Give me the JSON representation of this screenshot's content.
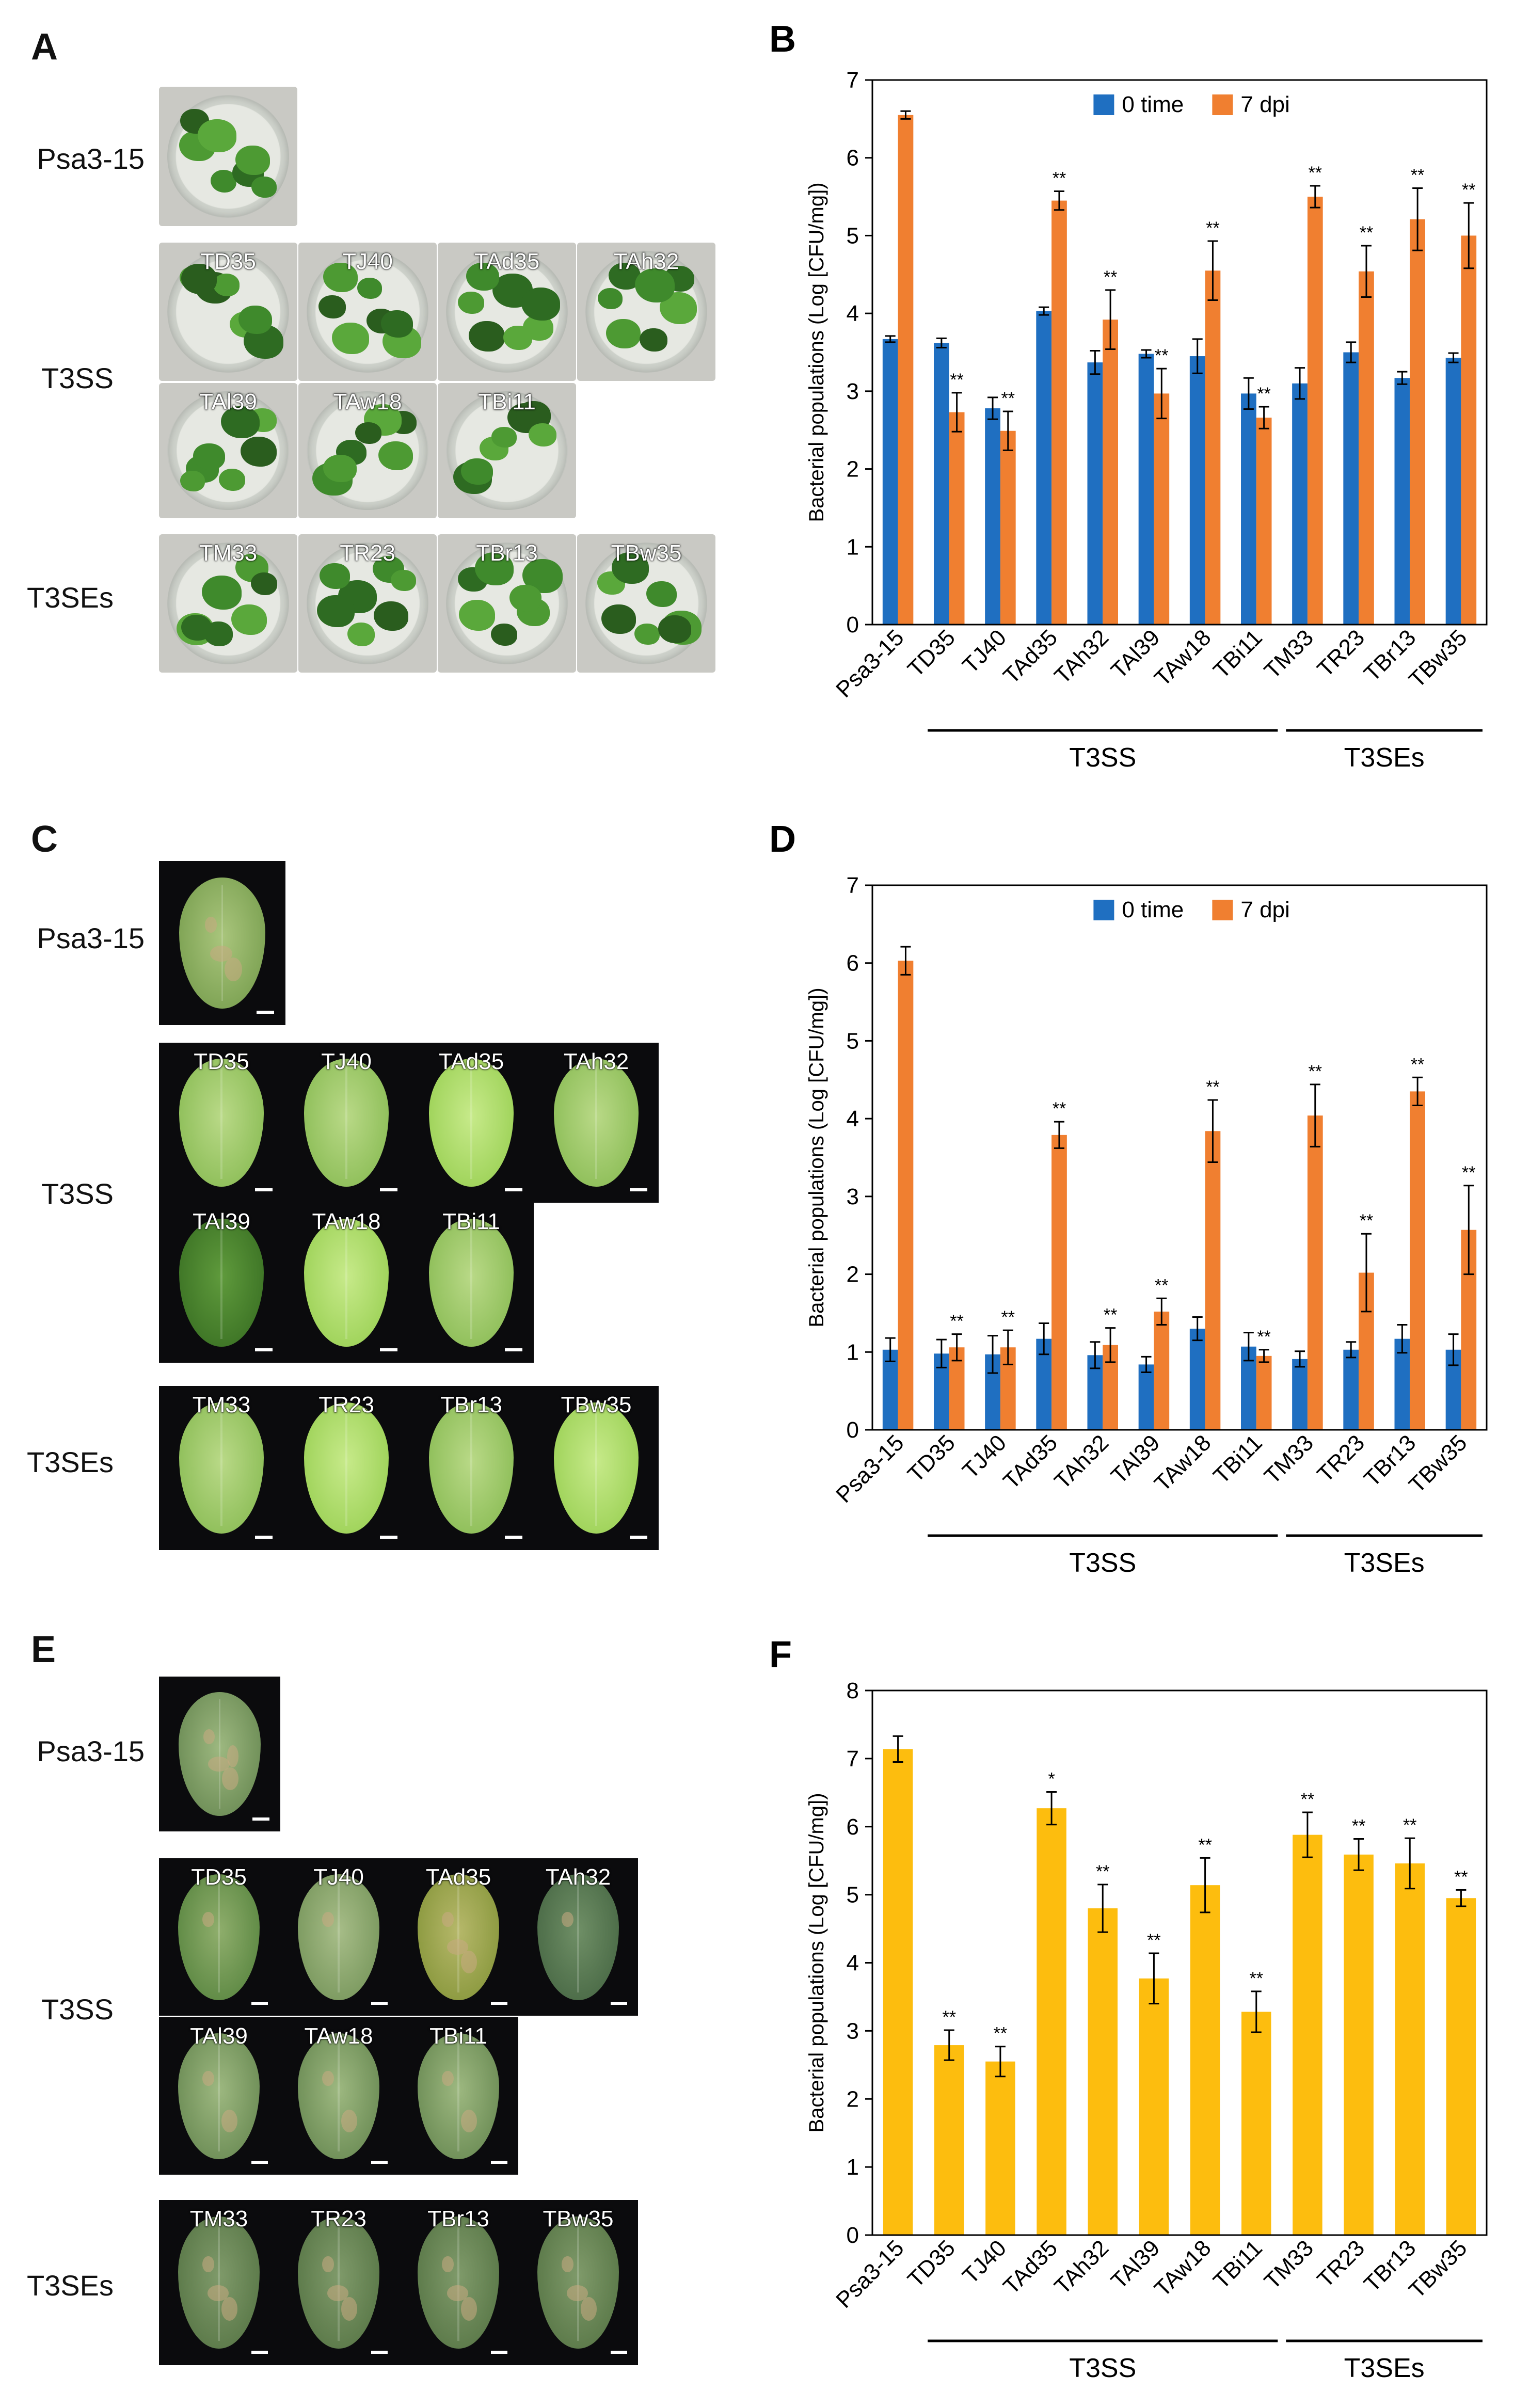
{
  "figure": {
    "photo_panels": [
      {
        "letter": "A",
        "row_labels": {
          "control": "Psa3-15",
          "t3ss": "T3SS",
          "t3ses": "T3SEs"
        },
        "control_label": "",
        "t3ss_tiles": [
          "TD35",
          "TJ40",
          "TAd35",
          "TAh32",
          "TAl39",
          "TAw18",
          "TBi11"
        ],
        "t3ses_tiles": [
          "TM33",
          "TR23",
          "TBr13",
          "TBw35"
        ]
      },
      {
        "letter": "C",
        "row_labels": {
          "control": "Psa3-15",
          "t3ss": "T3SS",
          "t3ses": "T3SEs"
        },
        "t3ss_tiles": [
          "TD35",
          "TJ40",
          "TAd35",
          "TAh32",
          "TAl39",
          "TAw18",
          "TBi11"
        ],
        "t3ses_tiles": [
          "TM33",
          "TR23",
          "TBr13",
          "TBw35"
        ]
      },
      {
        "letter": "E",
        "row_labels": {
          "control": "Psa3-15",
          "t3ss": "T3SS",
          "t3ses": "T3SEs"
        },
        "t3ss_tiles": [
          "TD35",
          "TJ40",
          "TAd35",
          "TAh32",
          "TAl39",
          "TAw18",
          "TBi11"
        ],
        "t3ses_tiles": [
          "TM33",
          "TR23",
          "TBr13",
          "TBw35"
        ]
      }
    ]
  },
  "colors": {
    "time0": "#1f6fc1",
    "dpi7": "#f07f30",
    "single": "#fdbd0e",
    "axis": "#000000"
  },
  "chart_data": [
    {
      "letter": "B",
      "type": "bar",
      "ylabel": "Bacterial populations (Log [CFU/mg])",
      "ylim": [
        0,
        7
      ],
      "yticks": [
        "0",
        "1",
        "2",
        "3",
        "4",
        "5",
        "6",
        "7"
      ],
      "categories": [
        "Psa3-15",
        "TD35",
        "TJ40",
        "TAd35",
        "TAh32",
        "TAl39",
        "TAw18",
        "TBi11",
        "TM33",
        "TR23",
        "TBr13",
        "TBw35"
      ],
      "legend": {
        "position": "top-center",
        "entries": [
          "0 time",
          "7 dpi"
        ]
      },
      "series": [
        {
          "name": "0 time",
          "values": [
            3.67,
            3.62,
            2.78,
            4.03,
            3.37,
            3.48,
            3.45,
            2.97,
            3.1,
            3.5,
            3.17,
            3.43
          ],
          "errors": [
            0.04,
            0.06,
            0.14,
            0.05,
            0.15,
            0.05,
            0.22,
            0.2,
            0.2,
            0.13,
            0.08,
            0.06
          ],
          "sig": [
            "",
            "",
            "",
            "",
            "",
            "",
            "",
            "",
            "",
            "",
            "",
            ""
          ]
        },
        {
          "name": "7 dpi",
          "values": [
            6.55,
            2.73,
            2.49,
            5.45,
            3.92,
            2.97,
            4.55,
            2.66,
            5.5,
            4.54,
            5.21,
            5.0
          ],
          "errors": [
            0.05,
            0.25,
            0.25,
            0.12,
            0.38,
            0.32,
            0.38,
            0.14,
            0.14,
            0.33,
            0.4,
            0.42
          ],
          "sig": [
            "",
            "**",
            "**",
            "**",
            "**",
            "**",
            "**",
            "**",
            "**",
            "**",
            "**",
            "**"
          ]
        }
      ],
      "groups": [
        {
          "label": "T3SS",
          "from": 1,
          "to": 7
        },
        {
          "label": "T3SEs",
          "from": 8,
          "to": 11
        }
      ]
    },
    {
      "letter": "D",
      "type": "bar",
      "ylabel": "Bacterial populations (Log [CFU/mg])",
      "ylim": [
        0,
        7
      ],
      "yticks": [
        "0",
        "1",
        "2",
        "3",
        "4",
        "5",
        "6",
        "7"
      ],
      "categories": [
        "Psa3-15",
        "TD35",
        "TJ40",
        "TAd35",
        "TAh32",
        "TAl39",
        "TAw18",
        "TBi11",
        "TM33",
        "TR23",
        "TBr13",
        "TBw35"
      ],
      "legend": {
        "position": "top-center",
        "entries": [
          "0 time",
          "7 dpi"
        ]
      },
      "series": [
        {
          "name": "0 time",
          "values": [
            1.03,
            0.98,
            0.97,
            1.17,
            0.96,
            0.84,
            1.3,
            1.07,
            0.91,
            1.03,
            1.17,
            1.03
          ],
          "errors": [
            0.15,
            0.18,
            0.24,
            0.2,
            0.17,
            0.1,
            0.15,
            0.18,
            0.1,
            0.1,
            0.18,
            0.2
          ],
          "sig": [
            "",
            "",
            "",
            "",
            "",
            "",
            "",
            "",
            "",
            "",
            "",
            ""
          ]
        },
        {
          "name": "7 dpi",
          "values": [
            6.03,
            1.06,
            1.06,
            3.79,
            1.09,
            1.52,
            3.84,
            0.95,
            4.04,
            2.02,
            4.35,
            2.57
          ],
          "errors": [
            0.18,
            0.17,
            0.22,
            0.17,
            0.22,
            0.17,
            0.4,
            0.08,
            0.4,
            0.5,
            0.18,
            0.57
          ],
          "sig": [
            "",
            "**",
            "**",
            "**",
            "**",
            "**",
            "**",
            "**",
            "**",
            "**",
            "**",
            "**"
          ]
        }
      ],
      "groups": [
        {
          "label": "T3SS",
          "from": 1,
          "to": 7
        },
        {
          "label": "T3SEs",
          "from": 8,
          "to": 11
        }
      ]
    },
    {
      "letter": "F",
      "type": "bar",
      "ylabel": "Bacterial populations (Log [CFU/mg])",
      "ylim": [
        0,
        8
      ],
      "yticks": [
        "0",
        "1",
        "2",
        "3",
        "4",
        "5",
        "6",
        "7",
        "8"
      ],
      "categories": [
        "Psa3-15",
        "TD35",
        "TJ40",
        "TAd35",
        "TAh32",
        "TAl39",
        "TAw18",
        "TBi11",
        "TM33",
        "TR23",
        "TBr13",
        "TBw35"
      ],
      "legend": null,
      "series": [
        {
          "name": "",
          "values": [
            7.14,
            2.79,
            2.55,
            6.27,
            4.8,
            3.77,
            5.14,
            3.28,
            5.88,
            5.59,
            5.46,
            4.95
          ],
          "errors": [
            0.19,
            0.22,
            0.22,
            0.24,
            0.35,
            0.37,
            0.4,
            0.3,
            0.33,
            0.23,
            0.37,
            0.12
          ],
          "sig": [
            "",
            "**",
            "**",
            "*",
            "**",
            "**",
            "**",
            "**",
            "**",
            "**",
            "**",
            "**"
          ]
        }
      ],
      "groups": [
        {
          "label": "T3SS",
          "from": 1,
          "to": 7
        },
        {
          "label": "T3SEs",
          "from": 8,
          "to": 11
        }
      ]
    }
  ]
}
